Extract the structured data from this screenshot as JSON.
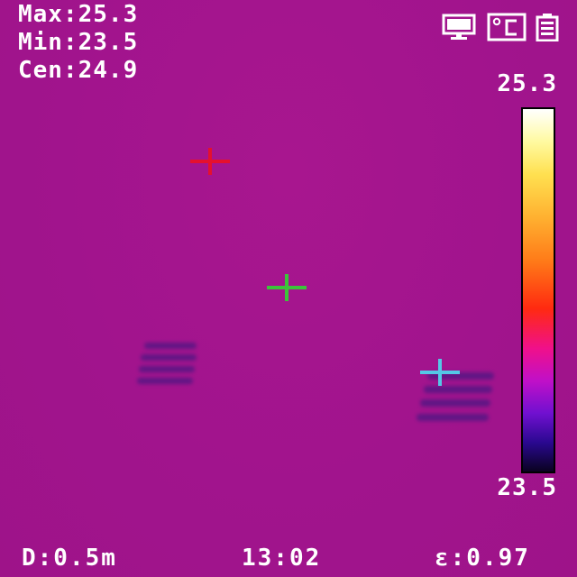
{
  "readouts": {
    "max": "Max:25.3",
    "min": "Min:23.5",
    "center": "Cen:24.9"
  },
  "status_icons": [
    "display-icon",
    "celsius-unit-icon",
    "battery-icon"
  ],
  "color_scale": {
    "max_label": "25.3",
    "min_label": "23.5",
    "palette": "iron",
    "colors": [
      "#ffffff",
      "#ffe050",
      "#ff7a18",
      "#ff2a10",
      "#f0108a",
      "#7010d0",
      "#0a0220"
    ]
  },
  "crosshairs": {
    "max_color": "#e5102e",
    "center_color": "#3cc43a",
    "min_color": "#54c7e6"
  },
  "footer": {
    "distance": "D:0.5m",
    "time": "13:02",
    "emissivity": "ε:0.97"
  }
}
